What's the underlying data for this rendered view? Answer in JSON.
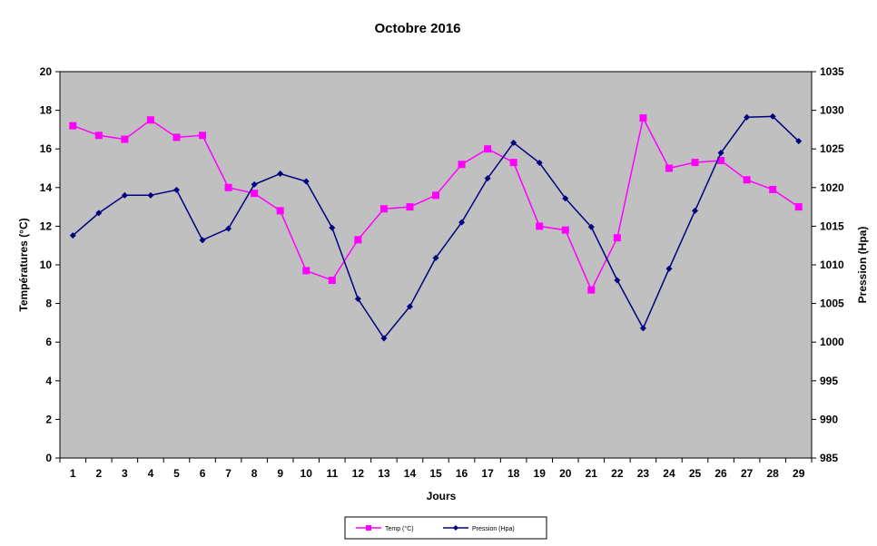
{
  "chart_data": {
    "type": "line",
    "title": "Octobre 2016",
    "xlabel": "Jours",
    "ylabel": "Températures (°C)",
    "y2label": "Pression (Hpa)",
    "ylim": [
      0,
      20
    ],
    "y2lim": [
      985,
      1035
    ],
    "yticks": [
      "0",
      "2",
      "4",
      "6",
      "8",
      "10",
      "12",
      "14",
      "16",
      "18",
      "20"
    ],
    "y2ticks": [
      "985",
      "990",
      "995",
      "1000",
      "1005",
      "1010",
      "1015",
      "1020",
      "1025",
      "1030",
      "1035"
    ],
    "categories": [
      "1",
      "2",
      "3",
      "4",
      "5",
      "6",
      "7",
      "8",
      "9",
      "10",
      "11",
      "12",
      "13",
      "14",
      "15",
      "16",
      "17",
      "18",
      "19",
      "20",
      "21",
      "22",
      "23",
      "24",
      "25",
      "26",
      "27",
      "28",
      "29"
    ],
    "grid": false,
    "plot_background": "#c0c0c0",
    "legend_position": "bottom",
    "series": [
      {
        "name": "Temp (°C)",
        "axis": "left",
        "color": "#ff00ff",
        "marker": "square",
        "values": [
          17.2,
          16.7,
          16.5,
          17.5,
          16.6,
          16.7,
          14.0,
          13.7,
          12.8,
          9.7,
          9.2,
          11.3,
          12.9,
          13.0,
          13.6,
          15.2,
          16.0,
          15.3,
          12.0,
          11.8,
          8.7,
          11.4,
          17.6,
          15.0,
          15.3,
          15.4,
          14.4,
          13.9,
          13.0
        ]
      },
      {
        "name": "Pression (Hpa)",
        "axis": "right",
        "color": "#000080",
        "marker": "diamond",
        "values": [
          1013.8,
          1016.7,
          1019.0,
          1019.0,
          1019.7,
          1013.2,
          1014.7,
          1020.4,
          1021.8,
          1020.8,
          1014.8,
          1005.6,
          1000.5,
          1004.6,
          1010.9,
          1015.5,
          1021.2,
          1025.8,
          1023.2,
          1018.6,
          1014.9,
          1008.0,
          1001.8,
          1009.5,
          1017.0,
          1024.5,
          1029.1,
          1029.2,
          1026.0
        ]
      }
    ]
  }
}
